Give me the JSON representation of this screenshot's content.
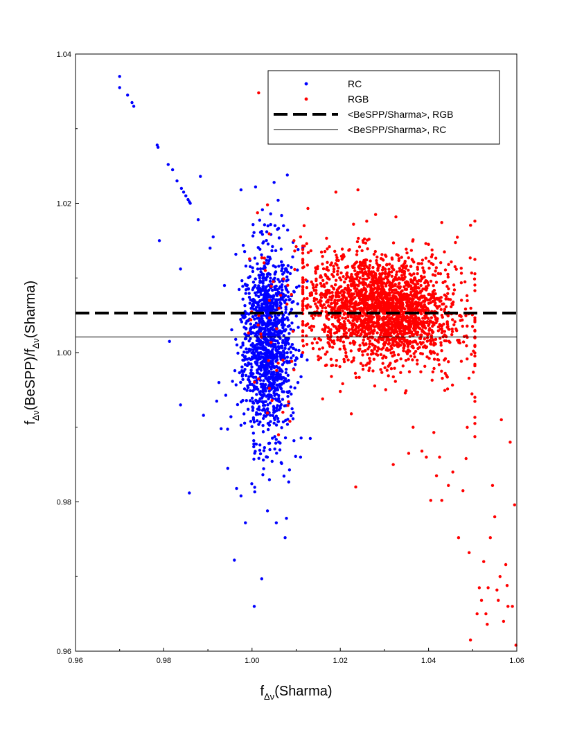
{
  "chart_data": {
    "type": "scatter",
    "title": "",
    "xlabel": {
      "base": "f",
      "sub": "Δν",
      "rest": "(Sharma)"
    },
    "ylabel": {
      "base": "f",
      "sub": "Δν",
      "mid": "(BeSPP)/f",
      "sub2": "Δν",
      "rest": "(Sharma)"
    },
    "xlim": [
      0.96,
      1.06
    ],
    "ylim": [
      0.96,
      1.04
    ],
    "xticks": [
      "0.96",
      "0.98",
      "1.00",
      "1.02",
      "1.04",
      "1.06"
    ],
    "yticks": [
      "0.96",
      "0.98",
      "1.00",
      "1.02",
      "1.04"
    ],
    "grid": false,
    "legend_position": "top-right",
    "series": [
      {
        "name": "RC",
        "color": "#0000ff",
        "cloud": {
          "x_center": 1.0035,
          "x_sd": 0.0028,
          "y_center": 1.0015,
          "y_sd": 0.0065,
          "count": 1300
        },
        "outliers": [
          [
            0.97,
            1.037
          ],
          [
            0.97,
            1.0355
          ],
          [
            0.9718,
            1.0345
          ],
          [
            0.9728,
            1.0335
          ],
          [
            0.9732,
            1.033
          ],
          [
            0.9785,
            1.0278
          ],
          [
            0.9787,
            1.0275
          ],
          [
            0.979,
            1.015
          ],
          [
            0.981,
            1.0252
          ],
          [
            0.982,
            1.0245
          ],
          [
            0.983,
            1.023
          ],
          [
            0.984,
            1.022
          ],
          [
            0.9845,
            1.0215
          ],
          [
            0.985,
            1.021
          ],
          [
            0.9855,
            1.0205
          ],
          [
            0.9858,
            1.0202
          ],
          [
            0.986,
            1.02
          ],
          [
            0.9813,
            1.0015
          ],
          [
            0.9838,
            1.0112
          ],
          [
            0.9838,
            0.993
          ],
          [
            0.9858,
            0.9812
          ],
          [
            0.9883,
            1.0236
          ],
          [
            0.9878,
            1.0178
          ],
          [
            0.989,
            0.9916
          ],
          [
            0.9905,
            1.014
          ],
          [
            0.9912,
            1.0155
          ],
          [
            0.992,
            0.9935
          ],
          [
            0.993,
            0.9898
          ],
          [
            0.9945,
            0.9845
          ],
          [
            0.996,
            0.9722
          ],
          [
            0.9965,
            0.9818
          ],
          [
            0.9975,
            0.9808
          ],
          [
            0.9985,
            0.9772
          ],
          [
            1.0005,
            0.966
          ],
          [
            1.0022,
            0.9697
          ],
          [
            1.0035,
            0.9788
          ],
          [
            1.0055,
            0.9772
          ],
          [
            1.0075,
            0.9752
          ],
          [
            1.0078,
            0.9778
          ],
          [
            1.008,
            1.0238
          ],
          [
            1.005,
            1.0228
          ],
          [
            1.0008,
            1.0222
          ],
          [
            0.9975,
            1.0218
          ],
          [
            1.0095,
            0.9882
          ],
          [
            1.011,
            0.986
          ],
          [
            1.0115,
            1.014
          ],
          [
            1.0132,
            0.9885
          ]
        ]
      },
      {
        "name": "RGB",
        "color": "#ff0000",
        "cloud": {
          "x_center": 1.0295,
          "x_sd": 0.0085,
          "y_center": 1.0058,
          "y_sd": 0.0035,
          "count": 2300
        },
        "outliers": [
          [
            1.0015,
            1.0348
          ],
          [
            1.0095,
            1.015
          ],
          [
            1.01,
            1.0142
          ],
          [
            1.011,
            1.0155
          ],
          [
            1.0118,
            1.017
          ],
          [
            1.0125,
            1.006
          ],
          [
            1.015,
            0.9995
          ],
          [
            1.016,
            0.9938
          ],
          [
            1.018,
            0.9968
          ],
          [
            1.019,
            1.0215
          ],
          [
            1.02,
            0.9948
          ],
          [
            1.0225,
            0.9918
          ],
          [
            1.0235,
            0.982
          ],
          [
            1.024,
            1.0218
          ],
          [
            1.023,
            1.0172
          ],
          [
            1.028,
            1.0185
          ],
          [
            1.032,
            0.985
          ],
          [
            1.0355,
            0.9865
          ],
          [
            1.0365,
            0.99
          ],
          [
            1.0385,
            0.9868
          ],
          [
            1.0395,
            0.986
          ],
          [
            1.04,
            1.0145
          ],
          [
            1.0405,
            0.9802
          ],
          [
            1.0412,
            0.9893
          ],
          [
            1.0418,
            0.9835
          ],
          [
            1.0425,
            0.986
          ],
          [
            1.043,
            0.9802
          ],
          [
            1.0445,
            0.9822
          ],
          [
            1.0455,
            0.984
          ],
          [
            1.046,
            1.0115
          ],
          [
            1.0468,
            0.9752
          ],
          [
            1.0478,
            0.9815
          ],
          [
            1.0485,
            0.9858
          ],
          [
            1.0492,
            0.9732
          ],
          [
            1.0495,
            0.9615
          ],
          [
            1.0505,
            0.9905
          ],
          [
            1.051,
            0.965
          ],
          [
            1.0515,
            0.9685
          ],
          [
            1.052,
            0.9668
          ],
          [
            1.0525,
            0.972
          ],
          [
            1.053,
            0.965
          ],
          [
            1.0533,
            0.9636
          ],
          [
            1.0535,
            0.9685
          ],
          [
            1.054,
            0.9752
          ],
          [
            1.0545,
            0.9822
          ],
          [
            1.055,
            0.978
          ],
          [
            1.0555,
            0.9682
          ],
          [
            1.0558,
            0.9668
          ],
          [
            1.0562,
            0.97
          ],
          [
            1.0565,
            0.991
          ],
          [
            1.057,
            0.964
          ],
          [
            1.0575,
            0.9716
          ],
          [
            1.0578,
            0.9688
          ],
          [
            1.058,
            0.966
          ],
          [
            1.0585,
            0.988
          ],
          [
            1.059,
            0.966
          ],
          [
            1.0595,
            0.9796
          ],
          [
            1.0598,
            0.9608
          ],
          [
            1.0035,
            1.0198
          ],
          [
            1.006,
            0.989
          ],
          [
            1.007,
            0.999
          ],
          [
            1.0048,
            1.0095
          ],
          [
            1.003,
            1.011
          ],
          [
            1.002,
            1.0025
          ]
        ]
      }
    ],
    "reference_lines": [
      {
        "name": "<BeSPP/Sharma>, RGB",
        "y": 1.0053,
        "style": "dashed",
        "width": 4
      },
      {
        "name": "<BeSPP/Sharma>, RC",
        "y": 1.0021,
        "style": "solid",
        "width": 1
      }
    ],
    "legend": [
      {
        "label": "RC",
        "kind": "dot",
        "color": "#0000ff"
      },
      {
        "label": "RGB",
        "kind": "dot",
        "color": "#ff0000"
      },
      {
        "label": "<BeSPP/Sharma>, RGB",
        "kind": "dashed-line",
        "color": "#000000"
      },
      {
        "label": "<BeSPP/Sharma>, RC",
        "kind": "solid-line",
        "color": "#000000"
      }
    ]
  }
}
